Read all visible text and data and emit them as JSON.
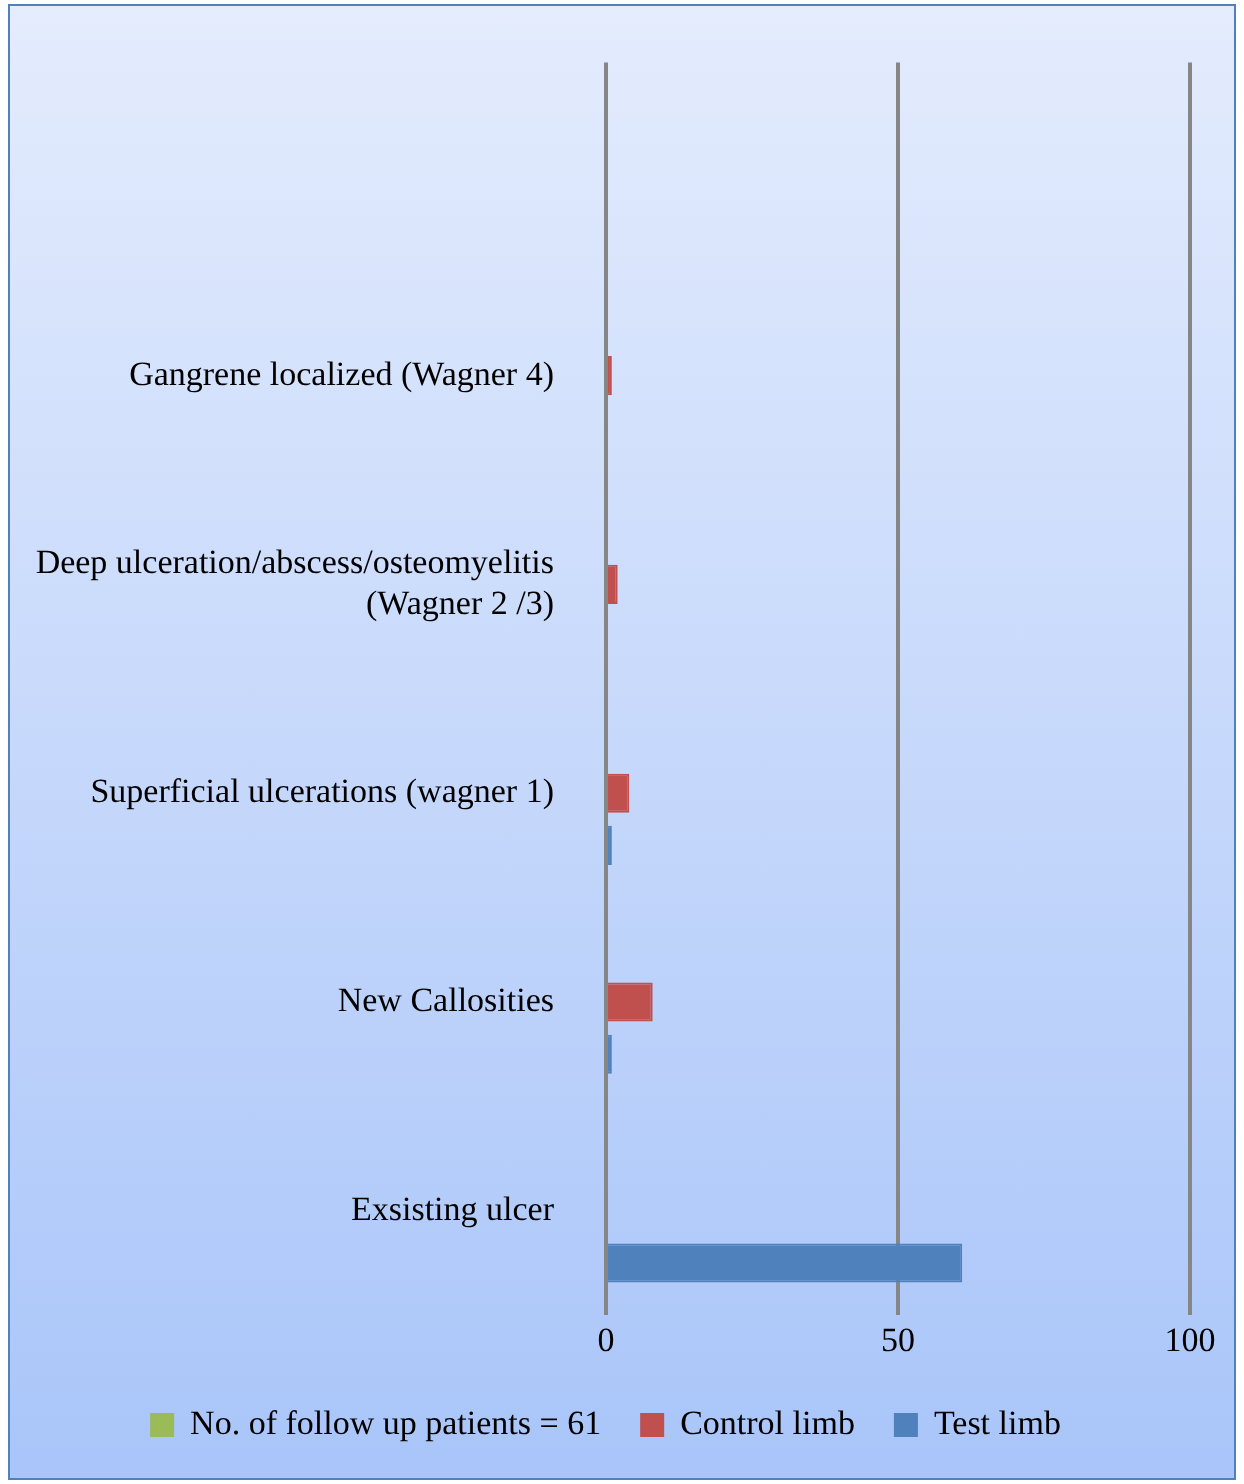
{
  "chart_data": {
    "type": "bar",
    "orientation": "horizontal",
    "categories": [
      null,
      "Gangrene localized (Wagner 4)",
      "Deep ulceration/abscess/osteomyelitis (Wagner 2 /3)",
      "Superficial ulcerations (wagner 1)",
      "New Callosities",
      "Exsisting ulcer"
    ],
    "series": [
      {
        "name": "No. of follow up patients = 61",
        "color": "#9bbb59",
        "values": [
          null,
          null,
          null,
          null,
          null,
          null
        ]
      },
      {
        "name": "Control limb",
        "color": "#c0504d",
        "values": [
          null,
          1,
          2,
          4,
          8,
          null
        ]
      },
      {
        "name": "Test limb",
        "color": "#4f81bd",
        "values": [
          null,
          null,
          null,
          1,
          1,
          61
        ]
      }
    ],
    "xlim": [
      0,
      100
    ],
    "xticks": [
      0,
      50,
      100
    ],
    "grid": "x",
    "legend": "bottom"
  }
}
